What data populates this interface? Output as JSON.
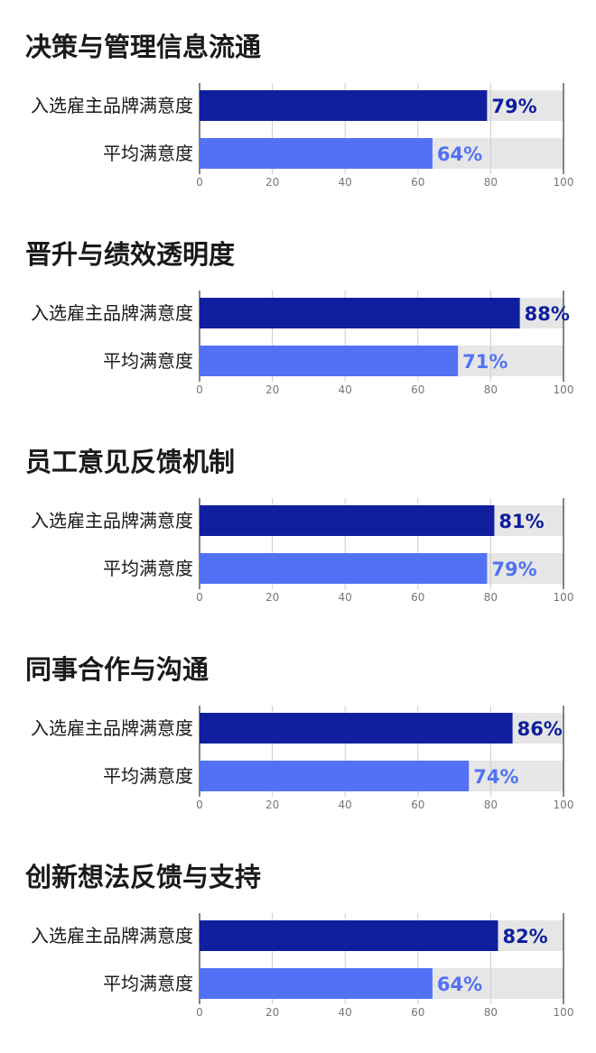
{
  "colors": {
    "primary": "#0f1f9e",
    "secondary": "#5271f5",
    "track": "#e6e6e6",
    "title": "#1a1a1a",
    "tick": "#777777"
  },
  "chart_data": [
    {
      "type": "bar",
      "title": "决策与管理信息流通",
      "categories": [
        "入选雇主品牌满意度",
        "平均满意度"
      ],
      "values": [
        79,
        64
      ],
      "value_labels": [
        "79%",
        "64%"
      ],
      "xlim": [
        0,
        100
      ],
      "xticks": [
        0,
        20,
        40,
        60,
        80,
        100
      ]
    },
    {
      "type": "bar",
      "title": "晋升与绩效透明度",
      "categories": [
        "入选雇主品牌满意度",
        "平均满意度"
      ],
      "values": [
        88,
        71
      ],
      "value_labels": [
        "88%",
        "71%"
      ],
      "xlim": [
        0,
        100
      ],
      "xticks": [
        0,
        20,
        40,
        60,
        80,
        100
      ]
    },
    {
      "type": "bar",
      "title": "员工意见反馈机制",
      "categories": [
        "入选雇主品牌满意度",
        "平均满意度"
      ],
      "values": [
        81,
        79
      ],
      "value_labels": [
        "81%",
        "79%"
      ],
      "xlim": [
        0,
        100
      ],
      "xticks": [
        0,
        20,
        40,
        60,
        80,
        100
      ]
    },
    {
      "type": "bar",
      "title": "同事合作与沟通",
      "categories": [
        "入选雇主品牌满意度",
        "平均满意度"
      ],
      "values": [
        86,
        74
      ],
      "value_labels": [
        "86%",
        "74%"
      ],
      "xlim": [
        0,
        100
      ],
      "xticks": [
        0,
        20,
        40,
        60,
        80,
        100
      ]
    },
    {
      "type": "bar",
      "title": "创新想法反馈与支持",
      "categories": [
        "入选雇主品牌满意度",
        "平均满意度"
      ],
      "values": [
        82,
        64
      ],
      "value_labels": [
        "82%",
        "64%"
      ],
      "xlim": [
        0,
        100
      ],
      "xticks": [
        0,
        20,
        40,
        60,
        80,
        100
      ]
    }
  ]
}
